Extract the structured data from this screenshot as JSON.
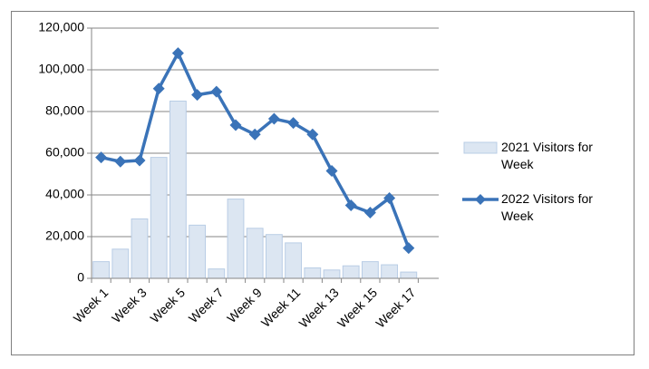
{
  "chart_data": {
    "type": "bar-line",
    "categories": [
      "Week 1",
      null,
      "Week 3",
      null,
      "Week 5",
      null,
      "Week 7",
      null,
      "Week 9",
      null,
      "Week 11",
      null,
      "Week 13",
      null,
      "Week 15",
      null,
      "Week 17"
    ],
    "series": [
      {
        "name": "2021 Visitors for Week",
        "type": "bar",
        "color": "#dce6f2",
        "values": [
          8000,
          14000,
          28500,
          58000,
          85000,
          25500,
          4500,
          38000,
          24000,
          21000,
          17000,
          5000,
          4000,
          6000,
          8000,
          6500,
          3000
        ]
      },
      {
        "name": "2022 Visitors for Week",
        "type": "line",
        "color": "#3a73b8",
        "values": [
          58000,
          56000,
          56500,
          91000,
          108000,
          88000,
          89500,
          73500,
          69000,
          76500,
          74500,
          69000,
          51500,
          35000,
          31500,
          38500,
          14500
        ]
      }
    ],
    "ylim": [
      0,
      120000
    ],
    "yticks": [
      0,
      {
        "value": 20000,
        "label": "20,000"
      },
      {
        "value": 40000,
        "label": "40,000"
      },
      {
        "value": 60000,
        "label": "60,000"
      },
      {
        "value": 80000,
        "label": "80,000"
      },
      {
        "value": 100000,
        "label": "100,000"
      },
      {
        "value": 120000,
        "label": "120,000"
      }
    ],
    "grid": true,
    "legend": "right"
  }
}
